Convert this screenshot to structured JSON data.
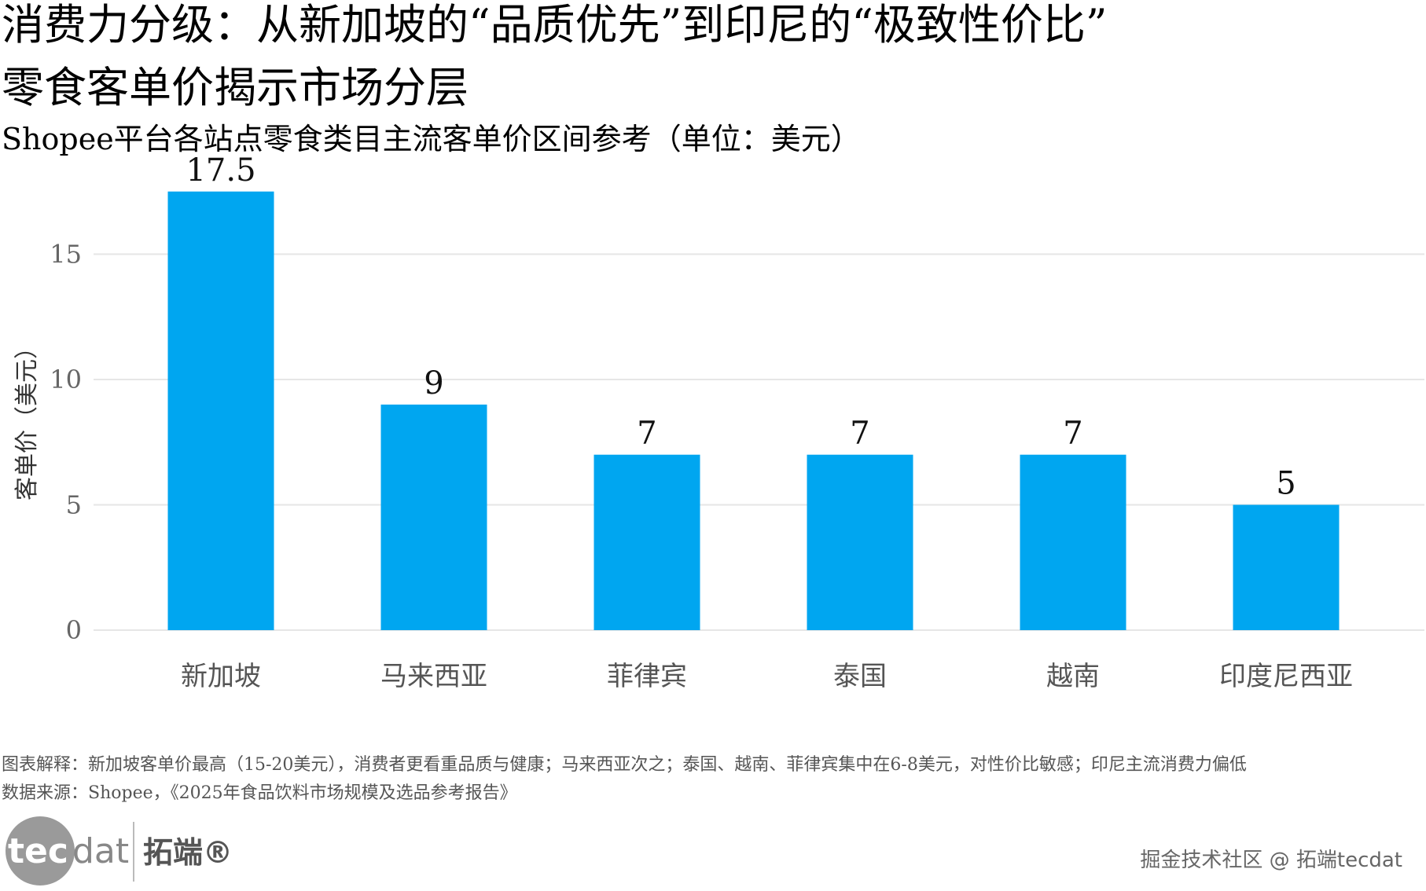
{
  "title_line1": "消费力分级：从新加坡的“品质优先”到印尼的“极致性价比”",
  "title_line2": "零食客单价揭示市场分层",
  "subtitle": "Shopee平台各站点零食类目主流客单价区间参考（单位：美元）",
  "chart_data": {
    "type": "bar",
    "categories": [
      "新加坡",
      "马来西亚",
      "菲律宾",
      "泰国",
      "越南",
      "印度尼西亚"
    ],
    "values": [
      17.5,
      9,
      7,
      7,
      7,
      5
    ],
    "data_labels": [
      "17.5",
      "9",
      "7",
      "7",
      "7",
      "5"
    ],
    "xlabel": "",
    "ylabel": "客单价（美元）",
    "yticks": [
      0,
      5,
      10,
      15
    ],
    "ytick_labels": [
      "0",
      "5",
      "10",
      "15"
    ],
    "ylim": [
      0,
      18
    ],
    "grid": true,
    "bar_color": "#00A6F0",
    "grid_color": "#E6E6E6"
  },
  "footer": {
    "explanation": "图表解释：新加坡客单价最高（15-20美元），消费者更看重品质与健康；马来西亚次之；泰国、越南、菲律宾集中在6-8美元，对性价比敏感；印尼主流消费力偏低",
    "source": "数据来源：Shopee，《2025年食品饮料市场规模及选品参考报告》"
  },
  "logo": {
    "text_en": "tecdat",
    "text_cn": "拓端®"
  },
  "watermark": "掘金技术社区 @ 拓端tecdat"
}
